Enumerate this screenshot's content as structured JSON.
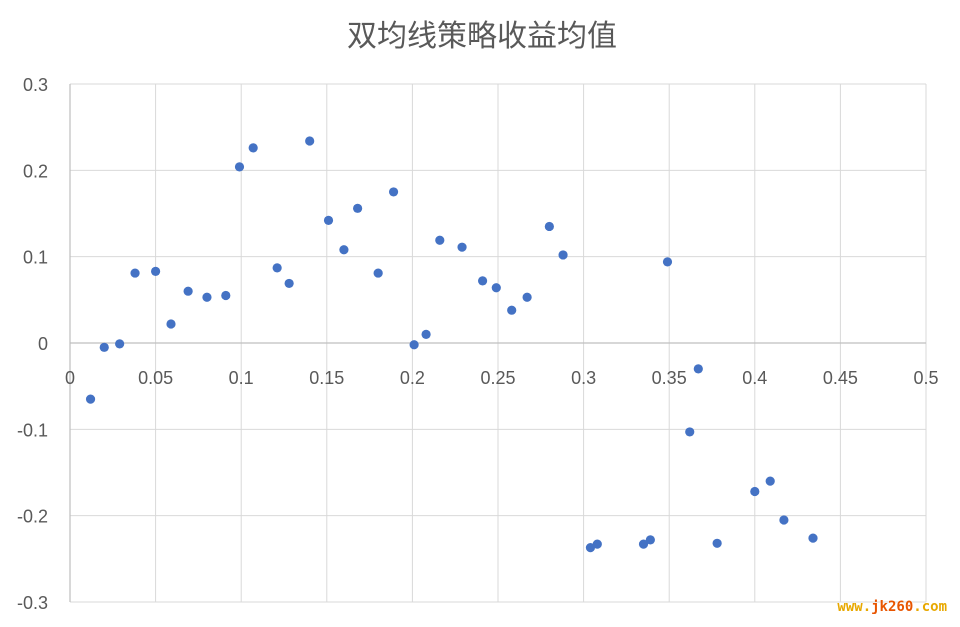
{
  "chart_data": {
    "type": "scatter",
    "title": "双均线策略收益均值",
    "xlabel": "",
    "ylabel": "",
    "xlim": [
      0,
      0.5
    ],
    "ylim": [
      -0.3,
      0.3
    ],
    "x_ticks": [
      0,
      0.05,
      0.1,
      0.15,
      0.2,
      0.25,
      0.3,
      0.35,
      0.4,
      0.45,
      0.5
    ],
    "x_tick_labels": [
      "0",
      "0.05",
      "0.1",
      "0.15",
      "0.2",
      "0.25",
      "0.3",
      "0.35",
      "0.4",
      "0.45",
      "0.5"
    ],
    "y_ticks": [
      0.3,
      0.2,
      0.1,
      0,
      -0.1,
      -0.2,
      -0.3
    ],
    "y_tick_labels": [
      "0.3",
      "0.2",
      "0.1",
      "0",
      "-0.1",
      "-0.2",
      "-0.3"
    ],
    "grid": true,
    "legend": "none",
    "marker_color": "#4472C4",
    "series": [
      {
        "points": [
          {
            "x": 0.012,
            "y": -0.065
          },
          {
            "x": 0.02,
            "y": -0.005
          },
          {
            "x": 0.029,
            "y": -0.001
          },
          {
            "x": 0.038,
            "y": 0.081
          },
          {
            "x": 0.05,
            "y": 0.083
          },
          {
            "x": 0.059,
            "y": 0.022
          },
          {
            "x": 0.069,
            "y": 0.06
          },
          {
            "x": 0.08,
            "y": 0.053
          },
          {
            "x": 0.091,
            "y": 0.055
          },
          {
            "x": 0.099,
            "y": 0.204
          },
          {
            "x": 0.107,
            "y": 0.226
          },
          {
            "x": 0.121,
            "y": 0.087
          },
          {
            "x": 0.128,
            "y": 0.069
          },
          {
            "x": 0.14,
            "y": 0.234
          },
          {
            "x": 0.151,
            "y": 0.142
          },
          {
            "x": 0.16,
            "y": 0.108
          },
          {
            "x": 0.168,
            "y": 0.156
          },
          {
            "x": 0.18,
            "y": 0.081
          },
          {
            "x": 0.189,
            "y": 0.175
          },
          {
            "x": 0.201,
            "y": -0.002
          },
          {
            "x": 0.208,
            "y": 0.01
          },
          {
            "x": 0.216,
            "y": 0.119
          },
          {
            "x": 0.229,
            "y": 0.111
          },
          {
            "x": 0.241,
            "y": 0.072
          },
          {
            "x": 0.249,
            "y": 0.064
          },
          {
            "x": 0.258,
            "y": 0.038
          },
          {
            "x": 0.267,
            "y": 0.053
          },
          {
            "x": 0.28,
            "y": 0.135
          },
          {
            "x": 0.288,
            "y": 0.102
          },
          {
            "x": 0.304,
            "y": -0.237
          },
          {
            "x": 0.308,
            "y": -0.233
          },
          {
            "x": 0.335,
            "y": -0.233
          },
          {
            "x": 0.339,
            "y": -0.228
          },
          {
            "x": 0.349,
            "y": 0.094
          },
          {
            "x": 0.362,
            "y": -0.103
          },
          {
            "x": 0.367,
            "y": -0.03
          },
          {
            "x": 0.378,
            "y": -0.232
          },
          {
            "x": 0.4,
            "y": -0.172
          },
          {
            "x": 0.409,
            "y": -0.16
          },
          {
            "x": 0.417,
            "y": -0.205
          },
          {
            "x": 0.434,
            "y": -0.226
          }
        ]
      }
    ]
  },
  "watermark": {
    "text": "www.jk260.com",
    "colors": [
      "#E8A800",
      "#E85500"
    ]
  }
}
